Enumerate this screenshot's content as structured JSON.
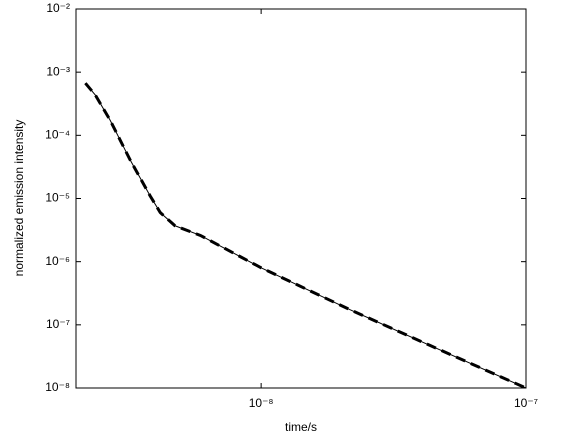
{
  "chart_data": {
    "type": "line",
    "xlabel": "time/s",
    "ylabel": "normalized emission intensity",
    "xscale": "log",
    "yscale": "log",
    "xlim": [
      2e-09,
      1e-07
    ],
    "ylim": [
      1e-08,
      0.01
    ],
    "xticks": [
      {
        "value": 1e-08,
        "label": "10⁻⁸"
      },
      {
        "value": 1e-07,
        "label": "10⁻⁷"
      }
    ],
    "yticks": [
      {
        "value": 1e-08,
        "label": "10⁻⁸"
      },
      {
        "value": 1e-07,
        "label": "10⁻⁷"
      },
      {
        "value": 1e-06,
        "label": "10⁻⁶"
      },
      {
        "value": 1e-05,
        "label": "10⁻⁵"
      },
      {
        "value": 0.0001,
        "label": "10⁻⁴"
      },
      {
        "value": 0.001,
        "label": "10⁻³"
      },
      {
        "value": 0.01,
        "label": "10⁻²"
      }
    ],
    "grid": false,
    "x": [
      2.17e-09,
      2.37e-09,
      2.69e-09,
      3.2e-09,
      3.81e-09,
      4.16e-09,
      4.73e-09,
      5.9e-09,
      1e-08,
      2.17e-08,
      4.35e-08,
      1e-07
    ],
    "series": [
      {
        "color": "#000000",
        "linestyle": "solid",
        "linewidth": 1,
        "values": [
          0.00067,
          0.00043,
          0.000174,
          4.1e-05,
          1.1e-05,
          6e-06,
          3.7e-06,
          2.6e-06,
          8e-07,
          1.73e-07,
          4.7e-08,
          1e-08
        ]
      },
      {
        "color": "#000000",
        "linestyle": "dashed",
        "linewidth": 3,
        "values": [
          0.00067,
          0.00043,
          0.000174,
          4.1e-05,
          1.1e-05,
          6e-06,
          3.7e-06,
          2.6e-06,
          8e-07,
          1.73e-07,
          4.7e-08,
          1e-08
        ]
      }
    ]
  }
}
